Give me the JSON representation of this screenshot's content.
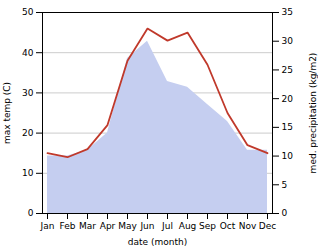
{
  "chart_data": {
    "type": "line",
    "categories": [
      "Jan",
      "Feb",
      "Mar",
      "Apr",
      "May",
      "Jun",
      "Jul",
      "Aug",
      "Sep",
      "Oct",
      "Nov",
      "Dec"
    ],
    "xlabel": "date (month)",
    "ylabel": "max temp (C)",
    "y2label": "med. precipitation (kg/m2)",
    "ylim": [
      0,
      50
    ],
    "yticks": [
      0,
      10,
      20,
      30,
      40,
      50
    ],
    "y2lim": [
      0,
      35
    ],
    "y2ticks": [
      0,
      5,
      10,
      15,
      20,
      25,
      30,
      35
    ],
    "grid": true,
    "series": [
      {
        "type": "area",
        "axis": "y2",
        "color": "#c5cef0",
        "values": [
          10,
          10,
          11,
          14,
          27,
          30,
          23,
          22,
          19,
          16,
          11,
          11
        ]
      },
      {
        "type": "line",
        "color": "#c0392b",
        "values": [
          15,
          14,
          16,
          22,
          38,
          46,
          43,
          45,
          37,
          25,
          17,
          15
        ]
      }
    ]
  }
}
